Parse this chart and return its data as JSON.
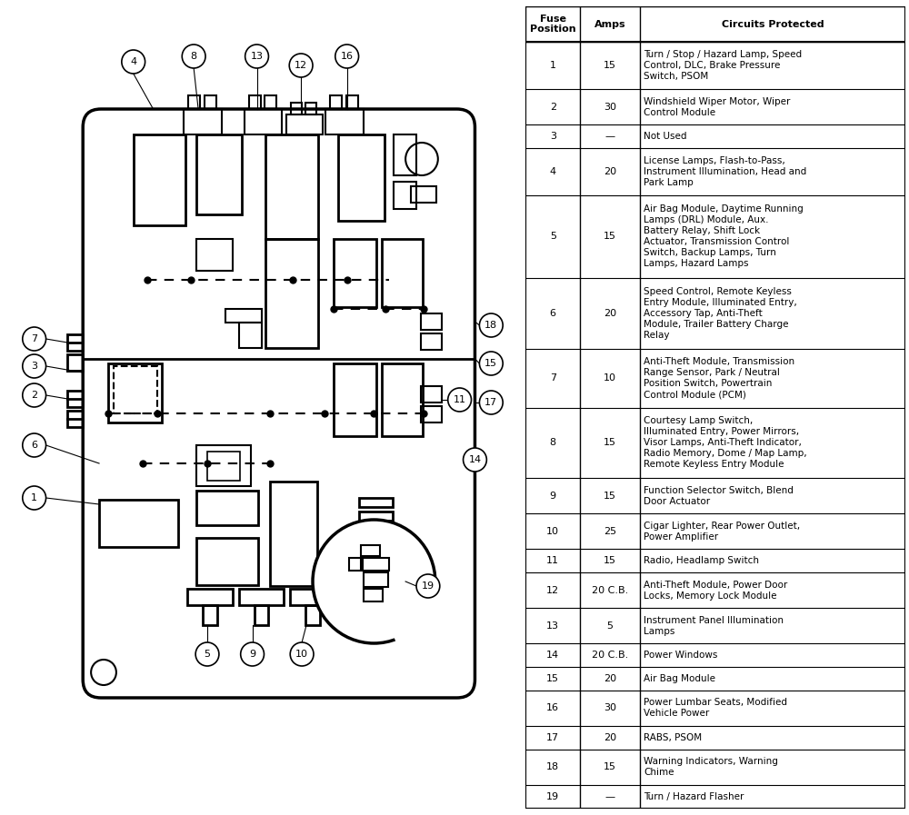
{
  "table_data": [
    [
      "1",
      "15",
      "Turn / Stop / Hazard Lamp, Speed\nControl, DLC, Brake Pressure\nSwitch, PSOM"
    ],
    [
      "2",
      "30",
      "Windshield Wiper Motor, Wiper\nControl Module"
    ],
    [
      "3",
      "—",
      "Not Used"
    ],
    [
      "4",
      "20",
      "License Lamps, Flash-to-Pass,\nInstrument Illumination, Head and\nPark Lamp"
    ],
    [
      "5",
      "15",
      "Air Bag Module, Daytime Running\nLamps (DRL) Module, Aux.\nBattery Relay, Shift Lock\nActuator, Transmission Control\nSwitch, Backup Lamps, Turn\nLamps, Hazard Lamps"
    ],
    [
      "6",
      "20",
      "Speed Control, Remote Keyless\nEntry Module, Illuminated Entry,\nAccessory Tap, Anti-Theft\nModule, Trailer Battery Charge\nRelay"
    ],
    [
      "7",
      "10",
      "Anti-Theft Module, Transmission\nRange Sensor, Park / Neutral\nPosition Switch, Powertrain\nControl Module (PCM)"
    ],
    [
      "8",
      "15",
      "Courtesy Lamp Switch,\nIlluminated Entry, Power Mirrors,\nVisor Lamps, Anti-Theft Indicator,\nRadio Memory, Dome / Map Lamp,\nRemote Keyless Entry Module"
    ],
    [
      "9",
      "15",
      "Function Selector Switch, Blend\nDoor Actuator"
    ],
    [
      "10",
      "25",
      "Cigar Lighter, Rear Power Outlet,\nPower Amplifier"
    ],
    [
      "11",
      "15",
      "Radio, Headlamp Switch"
    ],
    [
      "12",
      "20 C.B.",
      "Anti-Theft Module, Power Door\nLocks, Memory Lock Module"
    ],
    [
      "13",
      "5",
      "Instrument Panel Illumination\nLamps"
    ],
    [
      "14",
      "20 C.B.",
      "Power Windows"
    ],
    [
      "15",
      "20",
      "Air Bag Module"
    ],
    [
      "16",
      "30",
      "Power Lumbar Seats, Modified\nVehicle Power"
    ],
    [
      "17",
      "20",
      "RABS, PSOM"
    ],
    [
      "18",
      "15",
      "Warning Indicators, Warning\nChime"
    ],
    [
      "19",
      "—",
      "Turn / Hazard Flasher"
    ]
  ],
  "col_headers": [
    "Fuse\nPosition",
    "Amps",
    "Circuits Protected"
  ],
  "bg_color": "#ffffff"
}
